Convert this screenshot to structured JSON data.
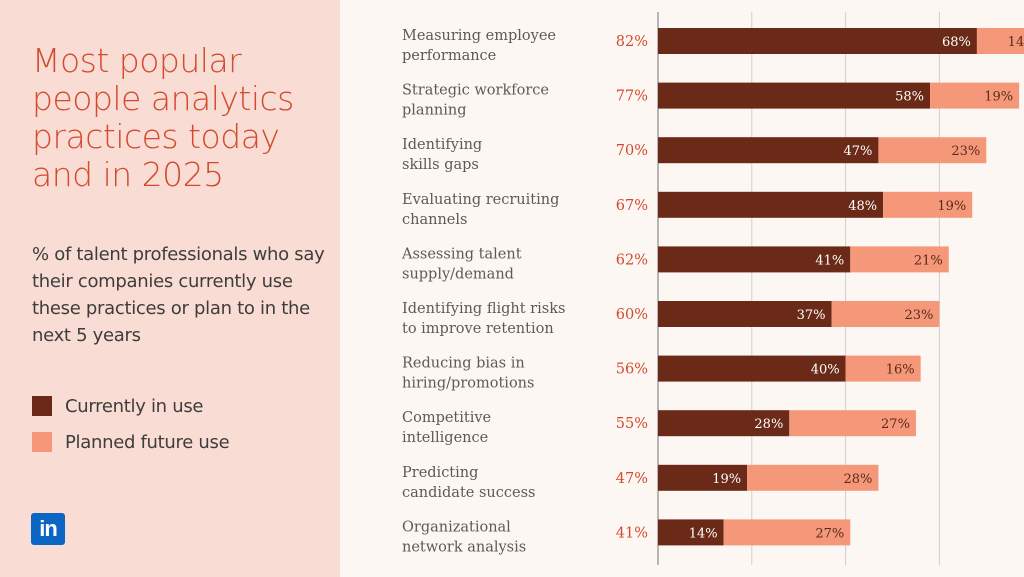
{
  "title": "Most popular people analytics practices today and in 2025",
  "subtitle": "% of talent professionals who say their companies currently use these practices or plan to in the next 5 years",
  "legend": {
    "current": "Currently in use",
    "planned": "Planned future use"
  },
  "logo": {
    "text": "in"
  },
  "colors": {
    "current": "#6b2a17",
    "planned": "#f5987a",
    "accent": "#d24b2e",
    "left_panel": "#f9dcd3",
    "background": "#fdf7f3"
  },
  "chart_data": {
    "type": "bar",
    "orientation": "horizontal",
    "stacked": true,
    "categories": [
      [
        "Measuring employee",
        "performance"
      ],
      [
        "Strategic workforce",
        "planning"
      ],
      [
        "Identifying",
        "skills gaps"
      ],
      [
        "Evaluating recruiting",
        "channels"
      ],
      [
        "Assessing talent",
        "supply/demand"
      ],
      [
        "Identifying flight risks",
        "to improve retention"
      ],
      [
        "Reducing bias in",
        "hiring/promotions"
      ],
      [
        "Competitive",
        "intelligence"
      ],
      [
        "Predicting",
        "candidate success"
      ],
      [
        "Organizational",
        "network analysis"
      ]
    ],
    "series": [
      {
        "name": "Currently in use",
        "values": [
          68,
          58,
          47,
          48,
          41,
          37,
          40,
          28,
          19,
          14
        ]
      },
      {
        "name": "Planned future use",
        "values": [
          14,
          19,
          23,
          19,
          21,
          23,
          16,
          27,
          28,
          27
        ]
      }
    ],
    "totals": [
      82,
      77,
      70,
      67,
      62,
      60,
      56,
      55,
      47,
      41
    ],
    "unit": "%",
    "xlim": [
      0,
      100
    ],
    "grid": true,
    "legend_position": "left"
  }
}
